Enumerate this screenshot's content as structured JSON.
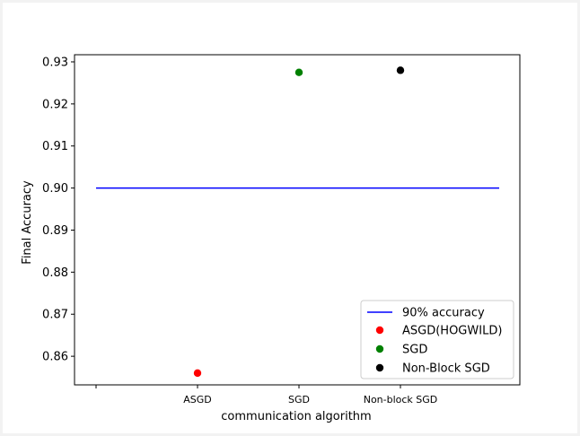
{
  "chart_data": {
    "type": "scatter",
    "xlabel": "communication algorithm",
    "ylabel": "Final Accuracy",
    "categories": [
      "",
      "ASGD",
      "SGD",
      "Non-block SGD"
    ],
    "ylim": [
      0.8532,
      0.9317
    ],
    "yticks": [
      "0.86",
      "0.87",
      "0.88",
      "0.89",
      "0.90",
      "0.91",
      "0.92",
      "0.93"
    ],
    "grid": false,
    "legend_position": "bottom-right",
    "reference_line": {
      "name": "90% accuracy",
      "value": 0.9,
      "color": "#0000ff"
    },
    "series": [
      {
        "name": "ASGD(HOGWILD)",
        "category": "ASGD",
        "value": 0.856,
        "color": "#ff0000"
      },
      {
        "name": "SGD",
        "category": "SGD",
        "value": 0.9275,
        "color": "#008000"
      },
      {
        "name": "Non-Block SGD",
        "category": "Non-block SGD",
        "value": 0.928,
        "color": "#000000"
      }
    ]
  }
}
